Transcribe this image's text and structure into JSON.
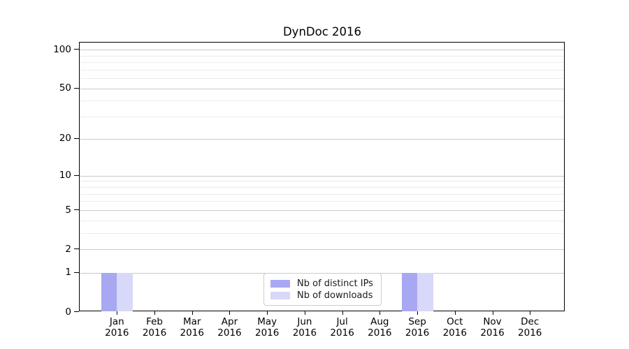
{
  "figure": {
    "title": "DynDoc 2016"
  },
  "chart_data": {
    "type": "bar",
    "title": "DynDoc 2016",
    "xlabel": "",
    "ylabel": "",
    "yscale": "log1p",
    "ylim": [
      0,
      113
    ],
    "grid": "horizontal",
    "legend_position": "lower center",
    "x_tick_months": [
      "Jan",
      "Feb",
      "Mar",
      "Apr",
      "May",
      "Jun",
      "Jul",
      "Aug",
      "Sep",
      "Oct",
      "Nov",
      "Dec"
    ],
    "x_tick_year": "2016",
    "categories": [
      "Jan 2016",
      "Feb 2016",
      "Mar 2016",
      "Apr 2016",
      "May 2016",
      "Jun 2016",
      "Jul 2016",
      "Aug 2016",
      "Sep 2016",
      "Oct 2016",
      "Nov 2016",
      "Dec 2016"
    ],
    "y_ticks": [
      0,
      1,
      2,
      5,
      10,
      20,
      50,
      100
    ],
    "y_minor_ticks": [
      3,
      4,
      6,
      7,
      8,
      9,
      30,
      40,
      60,
      70,
      80,
      90
    ],
    "series": [
      {
        "name": "Nb of distinct IPs",
        "color": "#a8a8f2",
        "values": [
          1,
          0,
          0,
          0,
          0,
          0,
          0,
          0,
          1,
          0,
          0,
          0
        ]
      },
      {
        "name": "Nb of downloads",
        "color": "#d8d8f8",
        "values": [
          1,
          0,
          0,
          0,
          0,
          0,
          0,
          0,
          1,
          0,
          0,
          0
        ]
      }
    ]
  },
  "colors": {
    "grid_major": "#c9c9c9",
    "grid_minor": "#ececec",
    "axis": "#000000",
    "legend_border": "#cccccc"
  }
}
